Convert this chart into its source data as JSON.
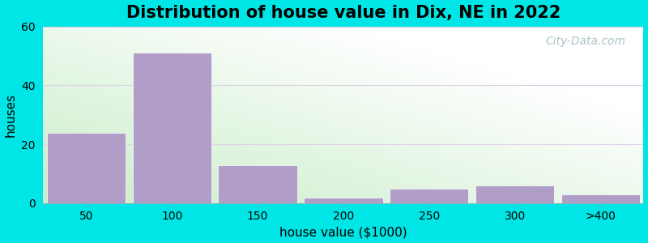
{
  "title": "Distribution of house value in Dix, NE in 2022",
  "xlabel": "house value ($1000)",
  "ylabel": "houses",
  "bar_labels": [
    "50",
    "100",
    "150",
    "200",
    "250",
    "300",
    ">400"
  ],
  "bar_heights": [
    24,
    51,
    13,
    2,
    5,
    6,
    3
  ],
  "bar_color": "#b09dc8",
  "ylim": [
    0,
    60
  ],
  "yticks": [
    0,
    20,
    40,
    60
  ],
  "background_color": "#00e5e5",
  "grid_color": "#e0d0e8",
  "title_fontsize": 15,
  "axis_label_fontsize": 11,
  "tick_fontsize": 10,
  "watermark_text": "City-Data.com",
  "bg_colors_corner": [
    "#c8edd8",
    "#ffffff",
    "#e8f8f0",
    "#f8fff8"
  ]
}
